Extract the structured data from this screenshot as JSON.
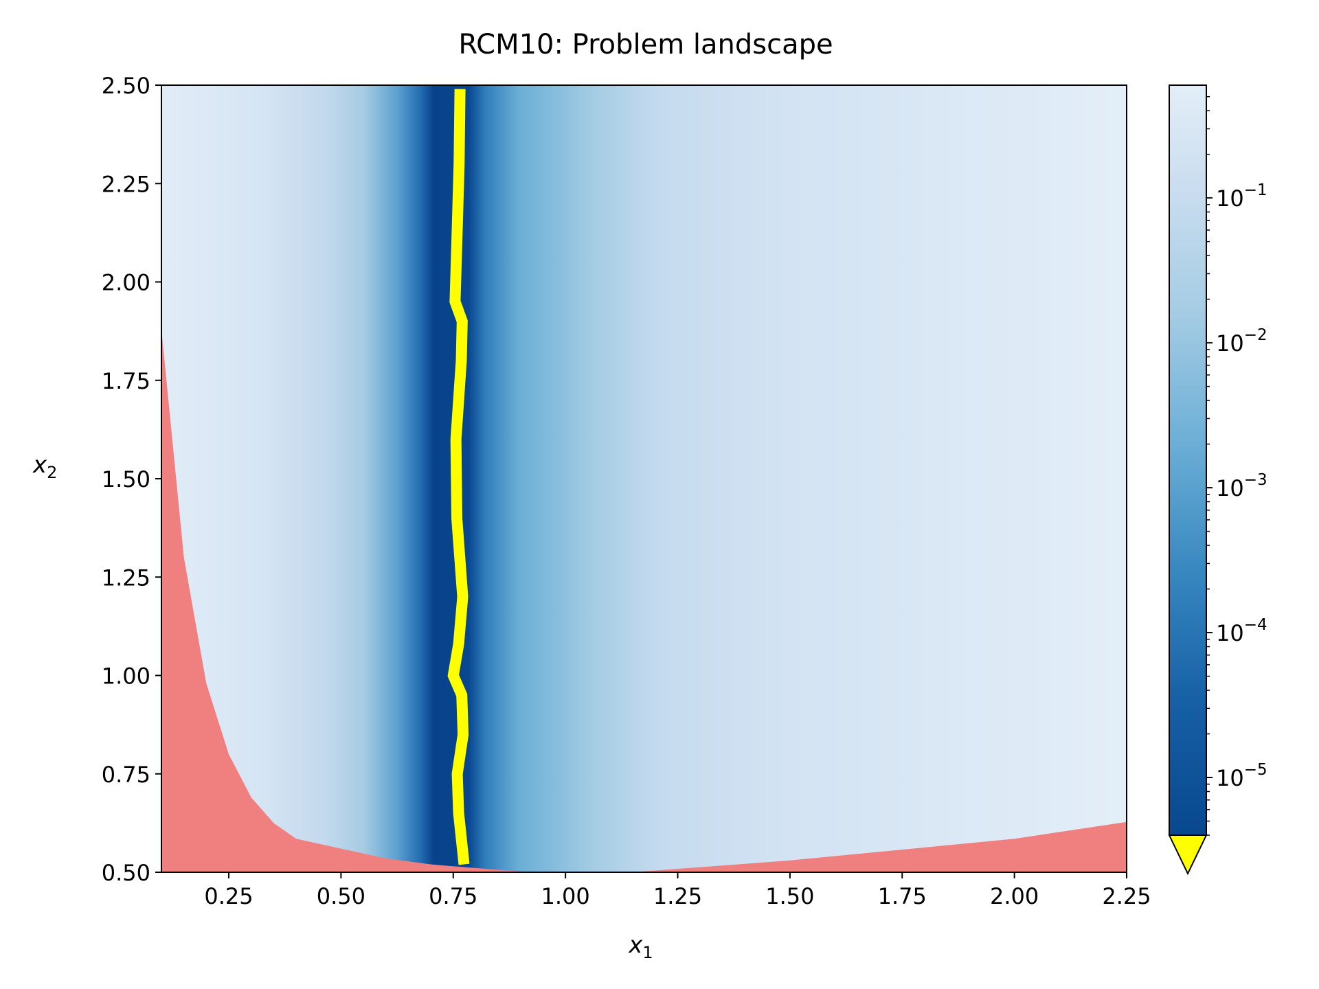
{
  "chart_data": {
    "type": "heatmap",
    "title": "RCM10: Problem landscape",
    "xlabel": "x",
    "xlabel_sub": "1",
    "ylabel": "x",
    "ylabel_sub": "2",
    "xlim": [
      0.1,
      2.25
    ],
    "ylim": [
      0.5,
      2.5
    ],
    "x_ticks": [
      0.25,
      0.5,
      0.75,
      1.0,
      1.25,
      1.5,
      1.75,
      2.0,
      2.25
    ],
    "x_tick_labels": [
      "0.25",
      "0.50",
      "0.75",
      "1.00",
      "1.25",
      "1.50",
      "1.75",
      "2.00",
      "2.25"
    ],
    "y_ticks": [
      0.5,
      0.75,
      1.0,
      1.25,
      1.5,
      1.75,
      2.0,
      2.25,
      2.5
    ],
    "y_tick_labels": [
      "0.50",
      "0.75",
      "1.00",
      "1.25",
      "1.50",
      "1.75",
      "2.00",
      "2.25",
      "2.50"
    ],
    "colormap": "Blues_r",
    "colorbar": {
      "scale": "log",
      "range": [
        4e-06,
        0.6
      ],
      "ticks": [
        1e-05,
        0.0001,
        0.001,
        0.01,
        0.1
      ],
      "tick_labels": [
        {
          "base": "10",
          "exp": "−5"
        },
        {
          "base": "10",
          "exp": "−4"
        },
        {
          "base": "10",
          "exp": "−3"
        },
        {
          "base": "10",
          "exp": "−2"
        },
        {
          "base": "10",
          "exp": "−1"
        }
      ],
      "extend": "min",
      "under_color": "#ffff00"
    },
    "optimum_band": {
      "color": "#ffff00",
      "x1_center": [
        [
          0.52,
          0.774
        ],
        [
          0.65,
          0.762
        ],
        [
          0.75,
          0.759
        ],
        [
          0.85,
          0.772
        ],
        [
          0.95,
          0.769
        ],
        [
          1.0,
          0.75
        ],
        [
          1.08,
          0.762
        ],
        [
          1.2,
          0.771
        ],
        [
          1.4,
          0.758
        ],
        [
          1.6,
          0.756
        ],
        [
          1.8,
          0.768
        ],
        [
          1.9,
          0.77
        ],
        [
          1.95,
          0.754
        ],
        [
          2.1,
          0.758
        ],
        [
          2.3,
          0.763
        ],
        [
          2.49,
          0.765
        ]
      ]
    },
    "infeasible_region": {
      "color": "#f08080",
      "left_boundary": [
        [
          0.1,
          1.88
        ],
        [
          0.15,
          1.3
        ],
        [
          0.2,
          0.98
        ],
        [
          0.25,
          0.8
        ],
        [
          0.3,
          0.69
        ],
        [
          0.35,
          0.625
        ],
        [
          0.4,
          0.585
        ],
        [
          0.5,
          0.56
        ],
        [
          0.6,
          0.535
        ],
        [
          0.7,
          0.52
        ],
        [
          0.74,
          0.516
        ]
      ],
      "right_boundary": [
        [
          1.15,
          0.5
        ],
        [
          1.5,
          0.53
        ],
        [
          2.0,
          0.585
        ],
        [
          2.25,
          0.628
        ]
      ]
    }
  }
}
